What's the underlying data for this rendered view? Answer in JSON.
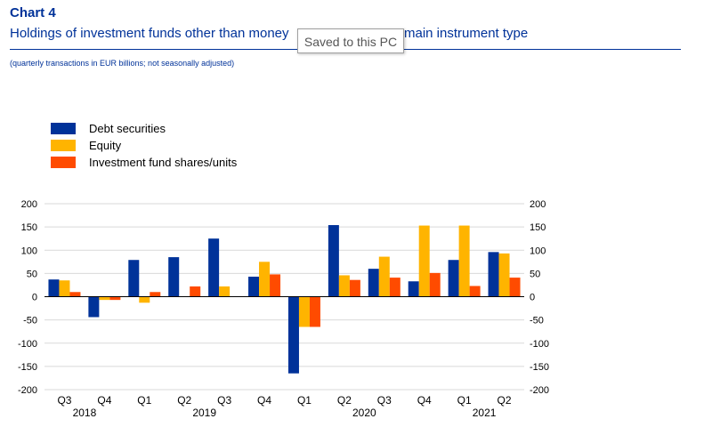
{
  "header": {
    "label": "Chart 4",
    "title_visible_start": "Holdings of investment funds other than money",
    "title_visible_end": "main instrument type",
    "subtitle": "(quarterly transactions in EUR billions; not seasonally adjusted)"
  },
  "tooltip": {
    "text": "Saved to this PC"
  },
  "colors": {
    "title": "#003299",
    "debt": "#003299",
    "equity": "#FFB400",
    "fund_shares": "#FF4B00"
  },
  "chart_data": {
    "type": "bar",
    "categories": [
      "Q3 2018",
      "Q4 2018",
      "Q1 2019",
      "Q2 2019",
      "Q3 2019",
      "Q4 2019",
      "Q1 2020",
      "Q2 2020",
      "Q3 2020",
      "Q4 2020",
      "Q1 2021",
      "Q2 2021"
    ],
    "quarter_labels": [
      "Q3",
      "Q4",
      "Q1",
      "Q2",
      "Q3",
      "Q4",
      "Q1",
      "Q2",
      "Q3",
      "Q4",
      "Q1",
      "Q2"
    ],
    "year_labels": [
      {
        "label": "2018",
        "from": 0,
        "to": 1
      },
      {
        "label": "2019",
        "from": 2,
        "to": 5
      },
      {
        "label": "2020",
        "from": 6,
        "to": 9
      },
      {
        "label": "2021",
        "from": 10,
        "to": 11
      }
    ],
    "series": [
      {
        "name": "Debt securities",
        "color": "#003299",
        "values": [
          37,
          -44,
          79,
          85,
          125,
          43,
          -165,
          154,
          60,
          33,
          79,
          96
        ]
      },
      {
        "name": "Equity",
        "color": "#FFB400",
        "values": [
          35,
          -7,
          -13,
          0,
          22,
          75,
          -65,
          46,
          86,
          153,
          153,
          93
        ]
      },
      {
        "name": "Investment fund shares/units",
        "color": "#FF4B00",
        "values": [
          10,
          -7,
          10,
          22,
          0,
          48,
          -65,
          36,
          41,
          51,
          23,
          41
        ]
      }
    ],
    "ylim": [
      -200,
      200
    ],
    "yticks": [
      -200,
      -150,
      -100,
      -50,
      0,
      50,
      100,
      150,
      200
    ],
    "grid": true,
    "legend_position": "top-left",
    "xlabel": "",
    "ylabel": ""
  }
}
